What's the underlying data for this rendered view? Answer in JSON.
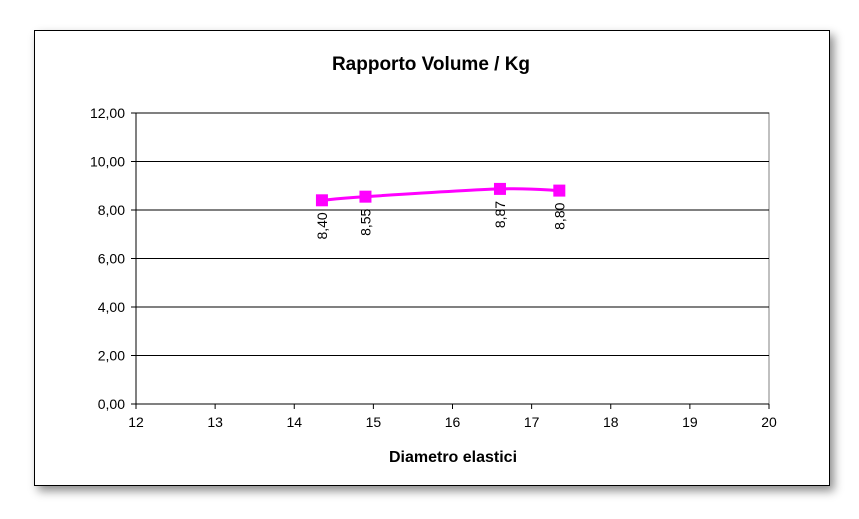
{
  "chart_data": {
    "type": "line",
    "title": "Rapporto Volume / Kg",
    "xlabel": "Diametro elastici",
    "ylabel": "",
    "xlim": [
      12,
      20
    ],
    "ylim": [
      0,
      12
    ],
    "x_ticks": [
      12,
      13,
      14,
      15,
      16,
      17,
      18,
      19,
      20
    ],
    "y_ticks": [
      "0,00",
      "2,00",
      "4,00",
      "6,00",
      "8,00",
      "10,00",
      "12,00"
    ],
    "grid": "horizontal",
    "legend": "none",
    "series": [
      {
        "color": "#ff00ff",
        "marker": "square",
        "points": [
          {
            "x": 14.35,
            "y": 8.4,
            "label": "8,40"
          },
          {
            "x": 14.9,
            "y": 8.55,
            "label": "8,55"
          },
          {
            "x": 16.6,
            "y": 8.87,
            "label": "8,87"
          },
          {
            "x": 17.35,
            "y": 8.8,
            "label": "8,80"
          }
        ]
      }
    ]
  }
}
